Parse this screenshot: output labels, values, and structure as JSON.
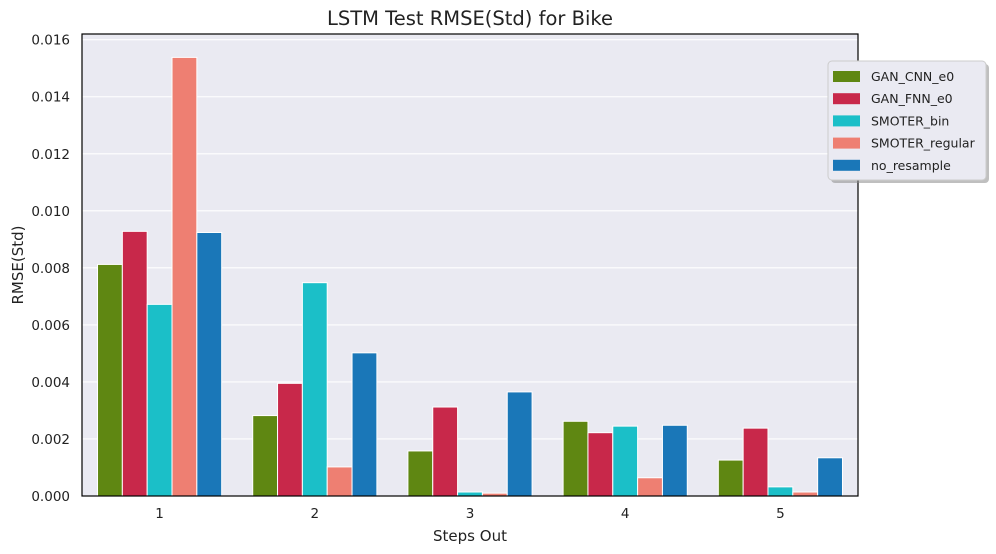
{
  "chart_data": {
    "type": "bar",
    "title": "LSTM Test RMSE(Std) for Bike",
    "xlabel": "Steps Out",
    "ylabel": "RMSE(Std)",
    "categories": [
      "1",
      "2",
      "3",
      "4",
      "5"
    ],
    "ylim": [
      0,
      0.0162
    ],
    "yticks": [
      "0.000",
      "0.002",
      "0.004",
      "0.006",
      "0.008",
      "0.010",
      "0.012",
      "0.014",
      "0.016"
    ],
    "grid": true,
    "legend_position": "right, outside plot top",
    "series": [
      {
        "name": "GAN_CNN_e0",
        "color": "#5f8712",
        "values": [
          0.00812,
          0.00282,
          0.00158,
          0.00262,
          0.00126
        ]
      },
      {
        "name": "GAN_FNN_e0",
        "color": "#c8284a",
        "values": [
          0.00928,
          0.00395,
          0.00312,
          0.00222,
          0.00238
        ]
      },
      {
        "name": "SMOTER_bin",
        "color": "#1bbfc8",
        "values": [
          0.00672,
          0.00748,
          0.00014,
          0.00245,
          0.00032
        ]
      },
      {
        "name": "SMOTER_regular",
        "color": "#ee7f72",
        "values": [
          0.01538,
          0.00102,
          0.0001,
          0.00064,
          0.00014
        ]
      },
      {
        "name": "no_resample",
        "color": "#1a77b8",
        "values": [
          0.00924,
          0.00502,
          0.00365,
          0.00248,
          0.00134
        ]
      }
    ]
  }
}
